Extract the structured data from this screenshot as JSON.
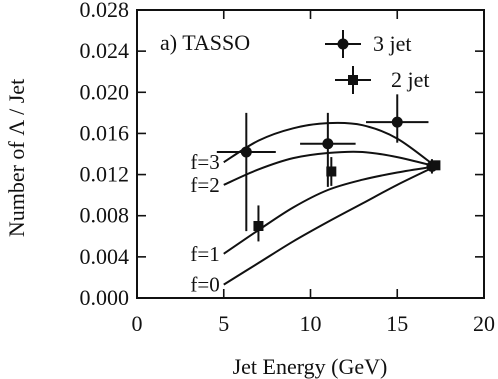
{
  "chart_data": {
    "type": "scatter",
    "title": "",
    "panel_label": "a)  TASSO",
    "xlabel": "Jet Energy (GeV)",
    "ylabel": "Number of Λ / Jet",
    "xlim": [
      0,
      20
    ],
    "ylim": [
      0.0,
      0.028
    ],
    "x_ticks": [
      0,
      5,
      10,
      15,
      20
    ],
    "x_tick_labels": [
      "0",
      "5",
      "10",
      "15",
      "20"
    ],
    "y_ticks": [
      0.0,
      0.004,
      0.008,
      0.012,
      0.016,
      0.02,
      0.024,
      0.028
    ],
    "y_tick_labels": [
      "0.000",
      "0.004",
      "0.008",
      "0.012",
      "0.016",
      "0.020",
      "0.024",
      "0.028"
    ],
    "grid": false,
    "legend_position": "top-right",
    "series": [
      {
        "name": "3 jet",
        "marker": "circle",
        "points": [
          {
            "x": 6.3,
            "y": 0.0142,
            "xerr": 1.7,
            "yerr_low": 0.0077,
            "yerr_high": 0.0038
          },
          {
            "x": 11.0,
            "y": 0.015,
            "xerr": 1.6,
            "yerr_low": 0.0042,
            "yerr_high": 0.003
          },
          {
            "x": 15.0,
            "y": 0.0171,
            "xerr": 1.8,
            "yerr_low": 0.002,
            "yerr_high": 0.0027
          },
          {
            "x": 17.0,
            "y": 0.0128,
            "xerr": 0.3,
            "yerr_low": 0.0007,
            "yerr_high": 0.0007
          }
        ]
      },
      {
        "name": "2 jet",
        "marker": "square",
        "points": [
          {
            "x": 7.0,
            "y": 0.007,
            "xerr": 0.0,
            "yerr_low": 0.0015,
            "yerr_high": 0.002
          },
          {
            "x": 11.2,
            "y": 0.0123,
            "xerr": 0.0,
            "yerr_low": 0.0014,
            "yerr_high": 0.0014
          },
          {
            "x": 17.2,
            "y": 0.0129,
            "xerr": 0.2,
            "yerr_low": 0.0004,
            "yerr_high": 0.0004
          }
        ]
      }
    ],
    "curves": [
      {
        "label": "f=3",
        "points": [
          [
            5.0,
            0.0132
          ],
          [
            7.0,
            0.0153
          ],
          [
            9.0,
            0.0165
          ],
          [
            11.0,
            0.017
          ],
          [
            13.0,
            0.0168
          ],
          [
            15.0,
            0.0155
          ],
          [
            17.2,
            0.0128
          ]
        ]
      },
      {
        "label": "f=2",
        "points": [
          [
            5.0,
            0.011
          ],
          [
            7.0,
            0.0125
          ],
          [
            9.0,
            0.0136
          ],
          [
            11.0,
            0.0141
          ],
          [
            13.0,
            0.0142
          ],
          [
            15.0,
            0.0137
          ],
          [
            17.2,
            0.0128
          ]
        ]
      },
      {
        "label": "f=1",
        "points": [
          [
            5.0,
            0.0043
          ],
          [
            7.0,
            0.0066
          ],
          [
            9.0,
            0.0088
          ],
          [
            11.0,
            0.0105
          ],
          [
            13.0,
            0.0115
          ],
          [
            15.0,
            0.0122
          ],
          [
            17.2,
            0.0128
          ]
        ]
      },
      {
        "label": "f=0",
        "points": [
          [
            5.0,
            0.0013
          ],
          [
            7.0,
            0.0034
          ],
          [
            9.0,
            0.0055
          ],
          [
            11.0,
            0.0074
          ],
          [
            13.0,
            0.0092
          ],
          [
            15.0,
            0.011
          ],
          [
            17.2,
            0.0128
          ]
        ]
      }
    ]
  }
}
